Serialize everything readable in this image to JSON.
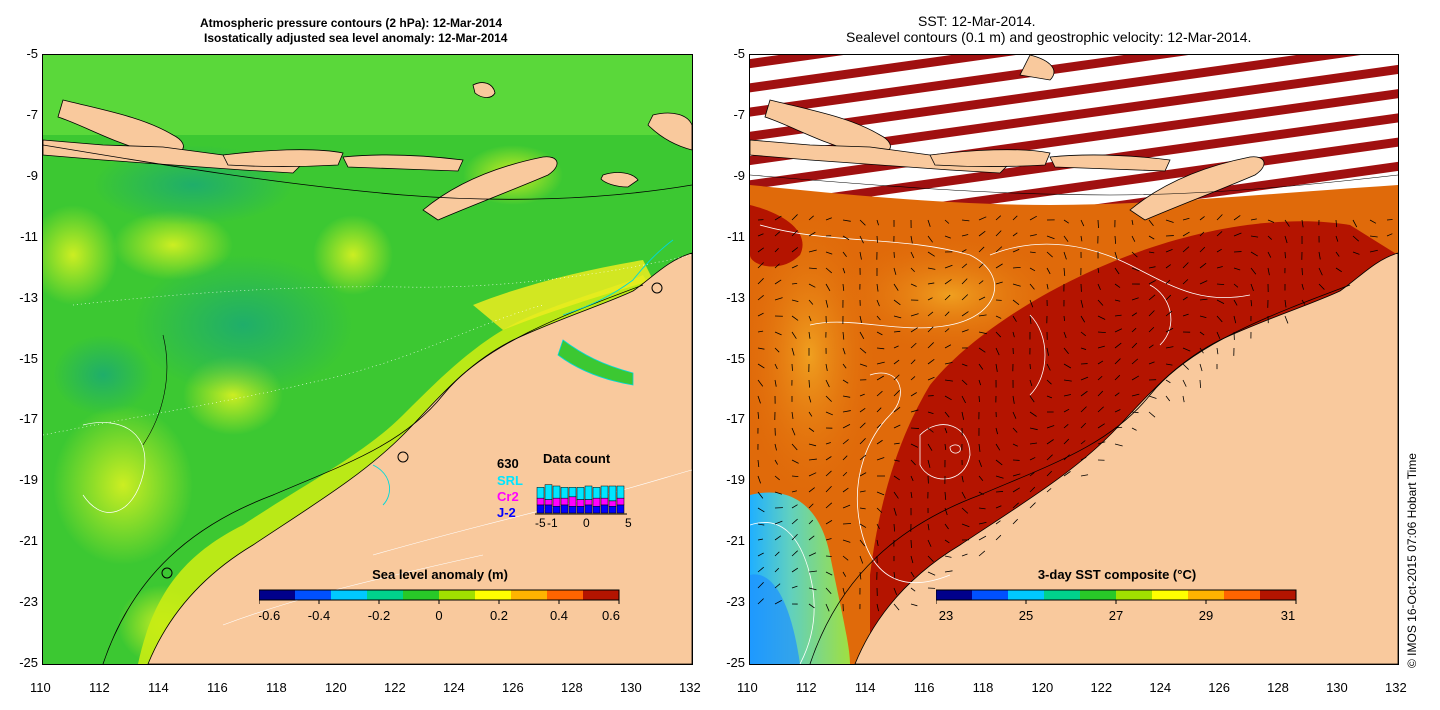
{
  "left_panel": {
    "title_line1": "Atmospheric pressure contours (2 hPa): 12-Mar-2014",
    "title_line2": "Isostatically adjusted sea level anomaly: 12-Mar-2014",
    "x_ticks": [
      "110",
      "112",
      "114",
      "116",
      "118",
      "120",
      "122",
      "124",
      "126",
      "128",
      "130",
      "132"
    ],
    "y_ticks": [
      "-5",
      "-7",
      "-9",
      "-11",
      "-13",
      "-15",
      "-17",
      "-19",
      "-21",
      "-23",
      "-25"
    ],
    "colorbar": {
      "title": "Sea level anomaly (m)",
      "range": [
        -0.6,
        0.6
      ],
      "tick_labels": [
        "-0.6",
        "-0.4",
        "-0.2",
        "0",
        "0.2",
        "0.4",
        "0.6"
      ],
      "colors": [
        "#00008b",
        "#0050ff",
        "#00c8ff",
        "#00d28c",
        "#28c828",
        "#a0e000",
        "#ffff00",
        "#ffb400",
        "#ff6400",
        "#b41400"
      ]
    },
    "inset": {
      "count": "630",
      "title": "Data count",
      "legend": [
        {
          "label": "SRL",
          "color": "#00e5ff"
        },
        {
          "label": "Cr2",
          "color": "#ff00ff"
        },
        {
          "label": "J-2",
          "color": "#0000ff"
        }
      ],
      "x_tick_labels": [
        "-5",
        "-1",
        "0",
        "5"
      ],
      "bars": [
        {
          "srl": 8,
          "cr2": 5,
          "j2": 6
        },
        {
          "srl": 11,
          "cr2": 4,
          "j2": 6
        },
        {
          "srl": 9,
          "cr2": 6,
          "j2": 5
        },
        {
          "srl": 8,
          "cr2": 5,
          "j2": 6
        },
        {
          "srl": 7,
          "cr2": 7,
          "j2": 5
        },
        {
          "srl": 9,
          "cr2": 5,
          "j2": 5
        },
        {
          "srl": 10,
          "cr2": 4,
          "j2": 6
        },
        {
          "srl": 8,
          "cr2": 6,
          "j2": 5
        },
        {
          "srl": 9,
          "cr2": 5,
          "j2": 6
        },
        {
          "srl": 11,
          "cr2": 4,
          "j2": 5
        },
        {
          "srl": 9,
          "cr2": 5,
          "j2": 6
        }
      ]
    }
  },
  "right_panel": {
    "title_line1": "SST: 12-Mar-2014.",
    "title_line2": "Sealevel contours (0.1 m) and geostrophic velocity: 12-Mar-2014.",
    "x_ticks": [
      "110",
      "112",
      "114",
      "116",
      "118",
      "120",
      "122",
      "124",
      "126",
      "128",
      "130",
      "132"
    ],
    "y_ticks": [
      "-5",
      "-7",
      "-9",
      "-11",
      "-13",
      "-15",
      "-17",
      "-19",
      "-21",
      "-23",
      "-25"
    ],
    "colorbar": {
      "title": "3-day SST composite (°C)",
      "range": [
        23,
        31
      ],
      "tick_labels": [
        "23",
        "25",
        "27",
        "29",
        "31"
      ],
      "colors": [
        "#00008b",
        "#0050ff",
        "#00c8ff",
        "#00d28c",
        "#28c828",
        "#a0e000",
        "#ffff00",
        "#ffb400",
        "#ff6400",
        "#b41400"
      ]
    }
  },
  "credit": "© IMOS 16-Oct-2015 07:06 Hobart Time",
  "colors": {
    "land": "#f9c99d",
    "sla_green": "#3cc832",
    "sla_yellow_green": "#b4e614",
    "sst_red": "#b41400",
    "sst_orange": "#e06a0a",
    "missing_band": "#a01010"
  }
}
